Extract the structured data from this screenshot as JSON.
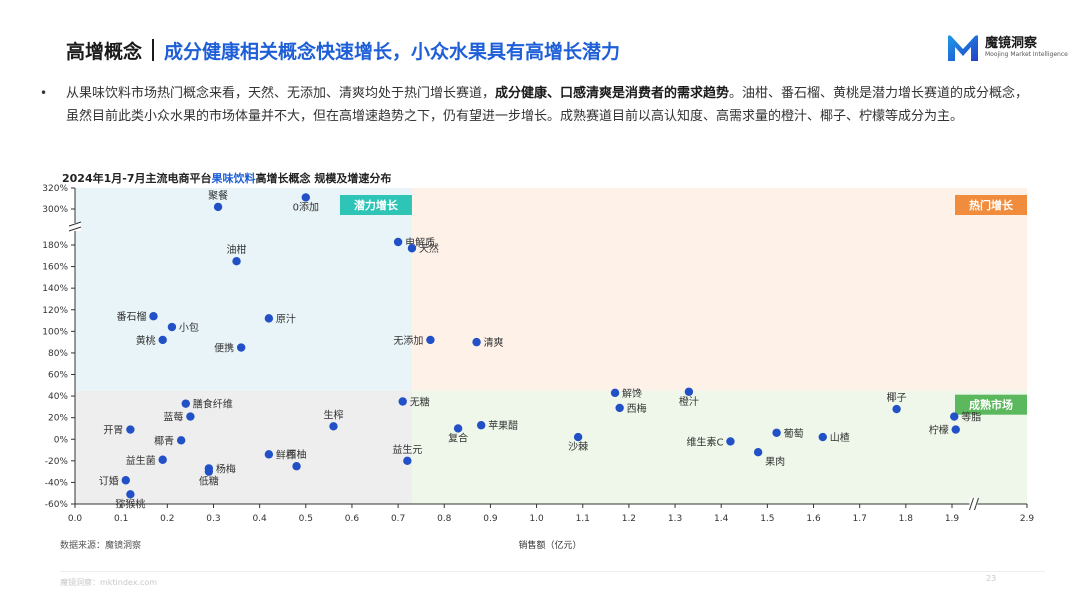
{
  "header": {
    "title_main": "高增概念",
    "title_sub": "成分健康相关概念快速增长，小众水果具有高增长潜力",
    "logo_name": "魔镜洞察",
    "logo_tagline": "Moojing Market Intelligence"
  },
  "summary": {
    "bullet": "•",
    "text_part1": "从果味饮料市场热门概念来看，天然、无添加、清爽均处于热门增长赛道，",
    "text_bold": "成分健康、口感清爽是消费者的需求趋势",
    "text_part2": "。油柑、番石榴、黄桃是潜力增长赛道的成分概念，虽然目前此类小众水果的市场体量并不大，但在高增速趋势之下，仍有望进一步增长。成熟赛道目前以高认知度、高需求量的橙汁、椰子、柠檬等成分为主。"
  },
  "footer": {
    "source": "数据来源：魔镜洞察",
    "site": "魔镜洞察：mktindex.com",
    "page": "23"
  },
  "chart_data": {
    "type": "scatter",
    "title_part1": "2024年1月-7月主流电商平台",
    "title_highlight": "果味饮料",
    "title_part2": "高增长概念 规模及增速分布",
    "xlabel": "销售额（亿元）",
    "ylabel": "",
    "x_ticks": [
      "0.0",
      "0.1",
      "0.2",
      "0.3",
      "0.4",
      "0.5",
      "0.6",
      "0.7",
      "0.8",
      "0.9",
      "1.0",
      "1.1",
      "1.2",
      "1.3",
      "1.4",
      "1.5",
      "1.6",
      "1.7",
      "1.8",
      "1.9",
      "2.9"
    ],
    "y_ticks_lower": [
      -60,
      -40,
      -20,
      0,
      20,
      40,
      60,
      80,
      100,
      120,
      140,
      160,
      180
    ],
    "y_ticks_upper": [
      300,
      320
    ],
    "y_tick_suffix": "%",
    "xlim": [
      0,
      2.9
    ],
    "ylim": [
      -60,
      320
    ],
    "axis_breaks": [
      "x: 1.9–2.9",
      "y: 180%–300%"
    ],
    "marker_color": "#2150c7",
    "quadrants": [
      {
        "name": "潜力增长",
        "color": "#e8f4f8",
        "label_color": "#2ec4b6"
      },
      {
        "name": "热门增长",
        "color": "#fdf1e8",
        "label_color": "#f08c3c"
      },
      {
        "name": "成熟市场",
        "color": "#eef7ea",
        "label_color": "#5cb85c"
      },
      {
        "name": "",
        "color": "#eeeeee"
      }
    ],
    "quadrant_dividers": {
      "x": 0.73,
      "y": 45
    },
    "points": [
      {
        "name": "0添加",
        "x": 0.5,
        "y": 311
      },
      {
        "name": "聚餐",
        "x": 0.31,
        "y": 302
      },
      {
        "name": "电解质",
        "x": 0.7,
        "y": 190
      },
      {
        "name": "天然",
        "x": 0.73,
        "y": 177
      },
      {
        "name": "油柑",
        "x": 0.35,
        "y": 165
      },
      {
        "name": "番石榴",
        "x": 0.17,
        "y": 114
      },
      {
        "name": "小包",
        "x": 0.21,
        "y": 104
      },
      {
        "name": "原汁",
        "x": 0.42,
        "y": 112
      },
      {
        "name": "黄桃",
        "x": 0.19,
        "y": 92
      },
      {
        "name": "便携",
        "x": 0.36,
        "y": 85
      },
      {
        "name": "无添加",
        "x": 0.77,
        "y": 92
      },
      {
        "name": "清爽",
        "x": 0.87,
        "y": 90
      },
      {
        "name": "膳食纤维",
        "x": 0.24,
        "y": 33
      },
      {
        "name": "无糖",
        "x": 0.71,
        "y": 35
      },
      {
        "name": "开胃",
        "x": 0.12,
        "y": 9
      },
      {
        "name": "椰青",
        "x": 0.23,
        "y": -1
      },
      {
        "name": "蓝莓",
        "x": 0.25,
        "y": 21
      },
      {
        "name": "益生菌",
        "x": 0.19,
        "y": -19
      },
      {
        "name": "杨梅",
        "x": 0.29,
        "y": -27
      },
      {
        "name": "低糖",
        "x": 0.29,
        "y": -30
      },
      {
        "name": "订婚",
        "x": 0.11,
        "y": -38
      },
      {
        "name": "猕猴桃",
        "x": 0.12,
        "y": -51
      },
      {
        "name": "鲜榨",
        "x": 0.42,
        "y": -14
      },
      {
        "name": "西柚",
        "x": 0.48,
        "y": -25
      },
      {
        "name": "生榨",
        "x": 0.56,
        "y": 12
      },
      {
        "name": "益生元",
        "x": 0.72,
        "y": -20
      },
      {
        "name": "复合",
        "x": 0.83,
        "y": 10
      },
      {
        "name": "苹果醋",
        "x": 0.88,
        "y": 13
      },
      {
        "name": "沙棘",
        "x": 1.09,
        "y": 2
      },
      {
        "name": "解馋",
        "x": 1.17,
        "y": 43
      },
      {
        "name": "西梅",
        "x": 1.18,
        "y": 29
      },
      {
        "name": "橙汁",
        "x": 1.33,
        "y": 44
      },
      {
        "name": "维生素C",
        "x": 1.42,
        "y": -2
      },
      {
        "name": "果肉",
        "x": 1.48,
        "y": -12
      },
      {
        "name": "葡萄",
        "x": 1.52,
        "y": 6
      },
      {
        "name": "山楂",
        "x": 1.62,
        "y": 2
      },
      {
        "name": "椰子",
        "x": 1.78,
        "y": 28
      },
      {
        "name": "等脂",
        "x": 1.93,
        "y": 21
      },
      {
        "name": "柠檬",
        "x": 1.95,
        "y": 9
      }
    ]
  }
}
